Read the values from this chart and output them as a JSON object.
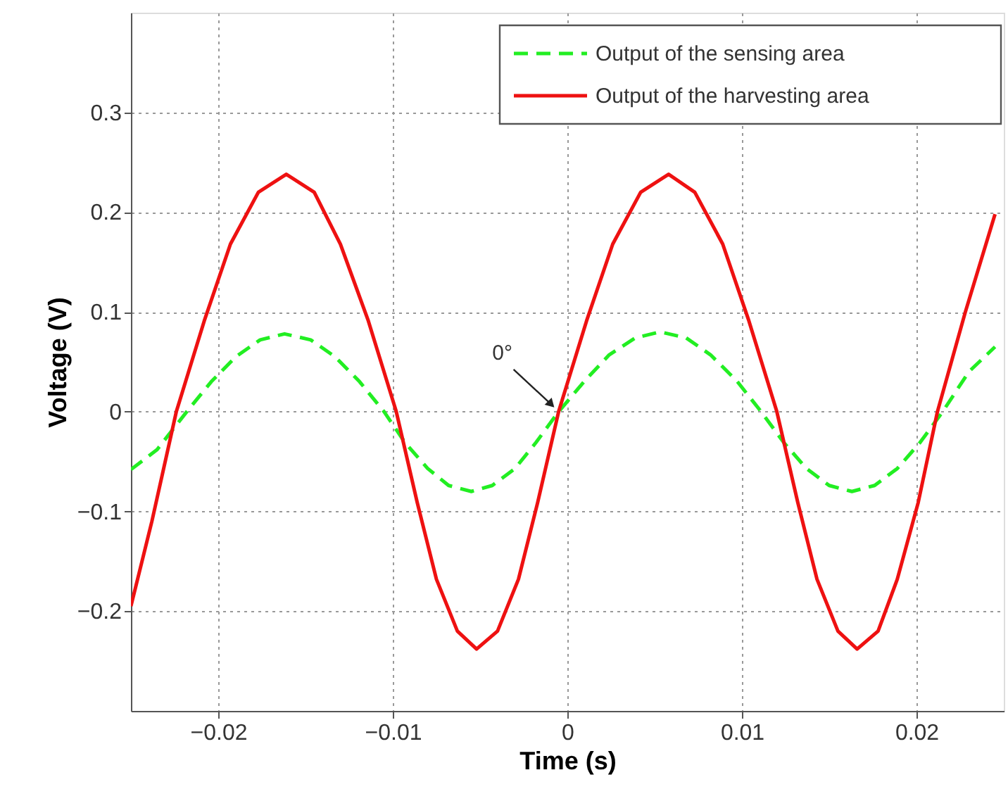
{
  "chart_data": {
    "type": "line",
    "xlabel": "Time (s)",
    "ylabel": "Voltage (V)",
    "xlim": [
      -0.025,
      0.025
    ],
    "ylim": [
      -0.3,
      0.4
    ],
    "xticks": [
      -0.02,
      -0.01,
      0,
      0.01,
      0.02
    ],
    "yticks": [
      -0.2,
      -0.1,
      0,
      0.1,
      0.2,
      0.3
    ],
    "grid": true,
    "legend": "top right",
    "marker": "none",
    "annotations": [
      {
        "text": "0°",
        "x": -0.0005,
        "y": 0
      }
    ],
    "series": [
      {
        "name": "Output of the sensing area",
        "color": "#22ee22",
        "line_style": "dashed",
        "x": [
          -0.025,
          -0.0235,
          -0.0218,
          -0.0204,
          -0.019,
          -0.0176,
          -0.0162,
          -0.0147,
          -0.0133,
          -0.0119,
          -0.0105,
          -0.0093,
          -0.008,
          -0.0068,
          -0.0055,
          -0.0043,
          -0.003,
          -0.0018,
          -0.0005,
          0.001,
          0.0024,
          0.0039,
          0.0053,
          0.0068,
          0.0082,
          0.0097,
          0.0111,
          0.0124,
          0.0137,
          0.015,
          0.0163,
          0.0176,
          0.0189,
          0.0202,
          0.0215,
          0.023,
          0.0245
        ],
        "values": [
          -0.058,
          -0.038,
          0,
          0.03,
          0.055,
          0.072,
          0.078,
          0.072,
          0.055,
          0.03,
          0,
          -0.031,
          -0.057,
          -0.074,
          -0.08,
          -0.074,
          -0.057,
          -0.031,
          0,
          0.031,
          0.057,
          0.074,
          0.08,
          0.074,
          0.057,
          0.031,
          0,
          -0.031,
          -0.057,
          -0.074,
          -0.08,
          -0.074,
          -0.057,
          -0.031,
          0,
          0.04,
          0.065
        ]
      },
      {
        "name": "Output of the harvesting area",
        "color": "#ee1111",
        "line_style": "solid",
        "x": [
          -0.025,
          -0.0238,
          -0.0224,
          -0.0208,
          -0.0193,
          -0.0177,
          -0.0161,
          -0.0145,
          -0.013,
          -0.0114,
          -0.0098,
          -0.0086,
          -0.0075,
          -0.0063,
          -0.0052,
          -0.004,
          -0.0028,
          -0.0017,
          -0.0005,
          0.0011,
          0.0026,
          0.0042,
          0.0058,
          0.0073,
          0.0089,
          0.0104,
          0.012,
          0.0132,
          0.0143,
          0.0155,
          0.0166,
          0.0178,
          0.0189,
          0.0201,
          0.0212,
          0.0228,
          0.0245
        ],
        "values": [
          -0.195,
          -0.11,
          0,
          0.091,
          0.168,
          0.22,
          0.238,
          0.22,
          0.168,
          0.091,
          0,
          -0.091,
          -0.168,
          -0.22,
          -0.238,
          -0.22,
          -0.168,
          -0.091,
          0,
          0.091,
          0.168,
          0.22,
          0.238,
          0.22,
          0.168,
          0.091,
          0,
          -0.091,
          -0.168,
          -0.22,
          -0.238,
          -0.22,
          -0.168,
          -0.091,
          0,
          0.1,
          0.198
        ]
      }
    ]
  }
}
